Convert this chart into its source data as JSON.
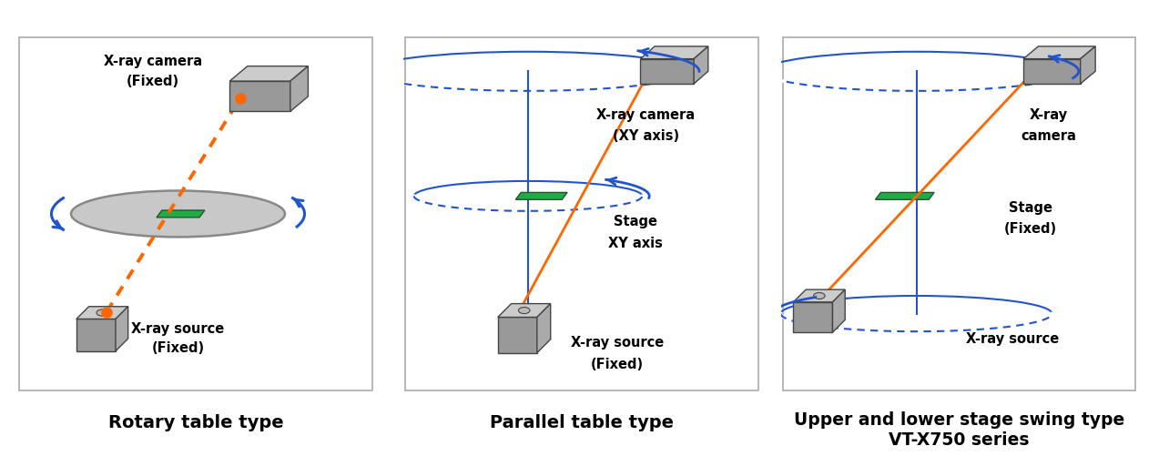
{
  "bg_color": "#ffffff",
  "border_color": "#aaaaaa",
  "orange_color": "#FF6600",
  "blue_color": "#2255CC",
  "green_color": "#22aa44",
  "gray_face": "#999999",
  "gray_top": "#cccccc",
  "gray_right": "#aaaaaa",
  "gray_edge": "#444444",
  "label_fontsize": 11,
  "panel_labels": [
    "Rotary table type",
    "Parallel table type",
    "Upper and lower stage swing type\nVT-X750 series"
  ]
}
